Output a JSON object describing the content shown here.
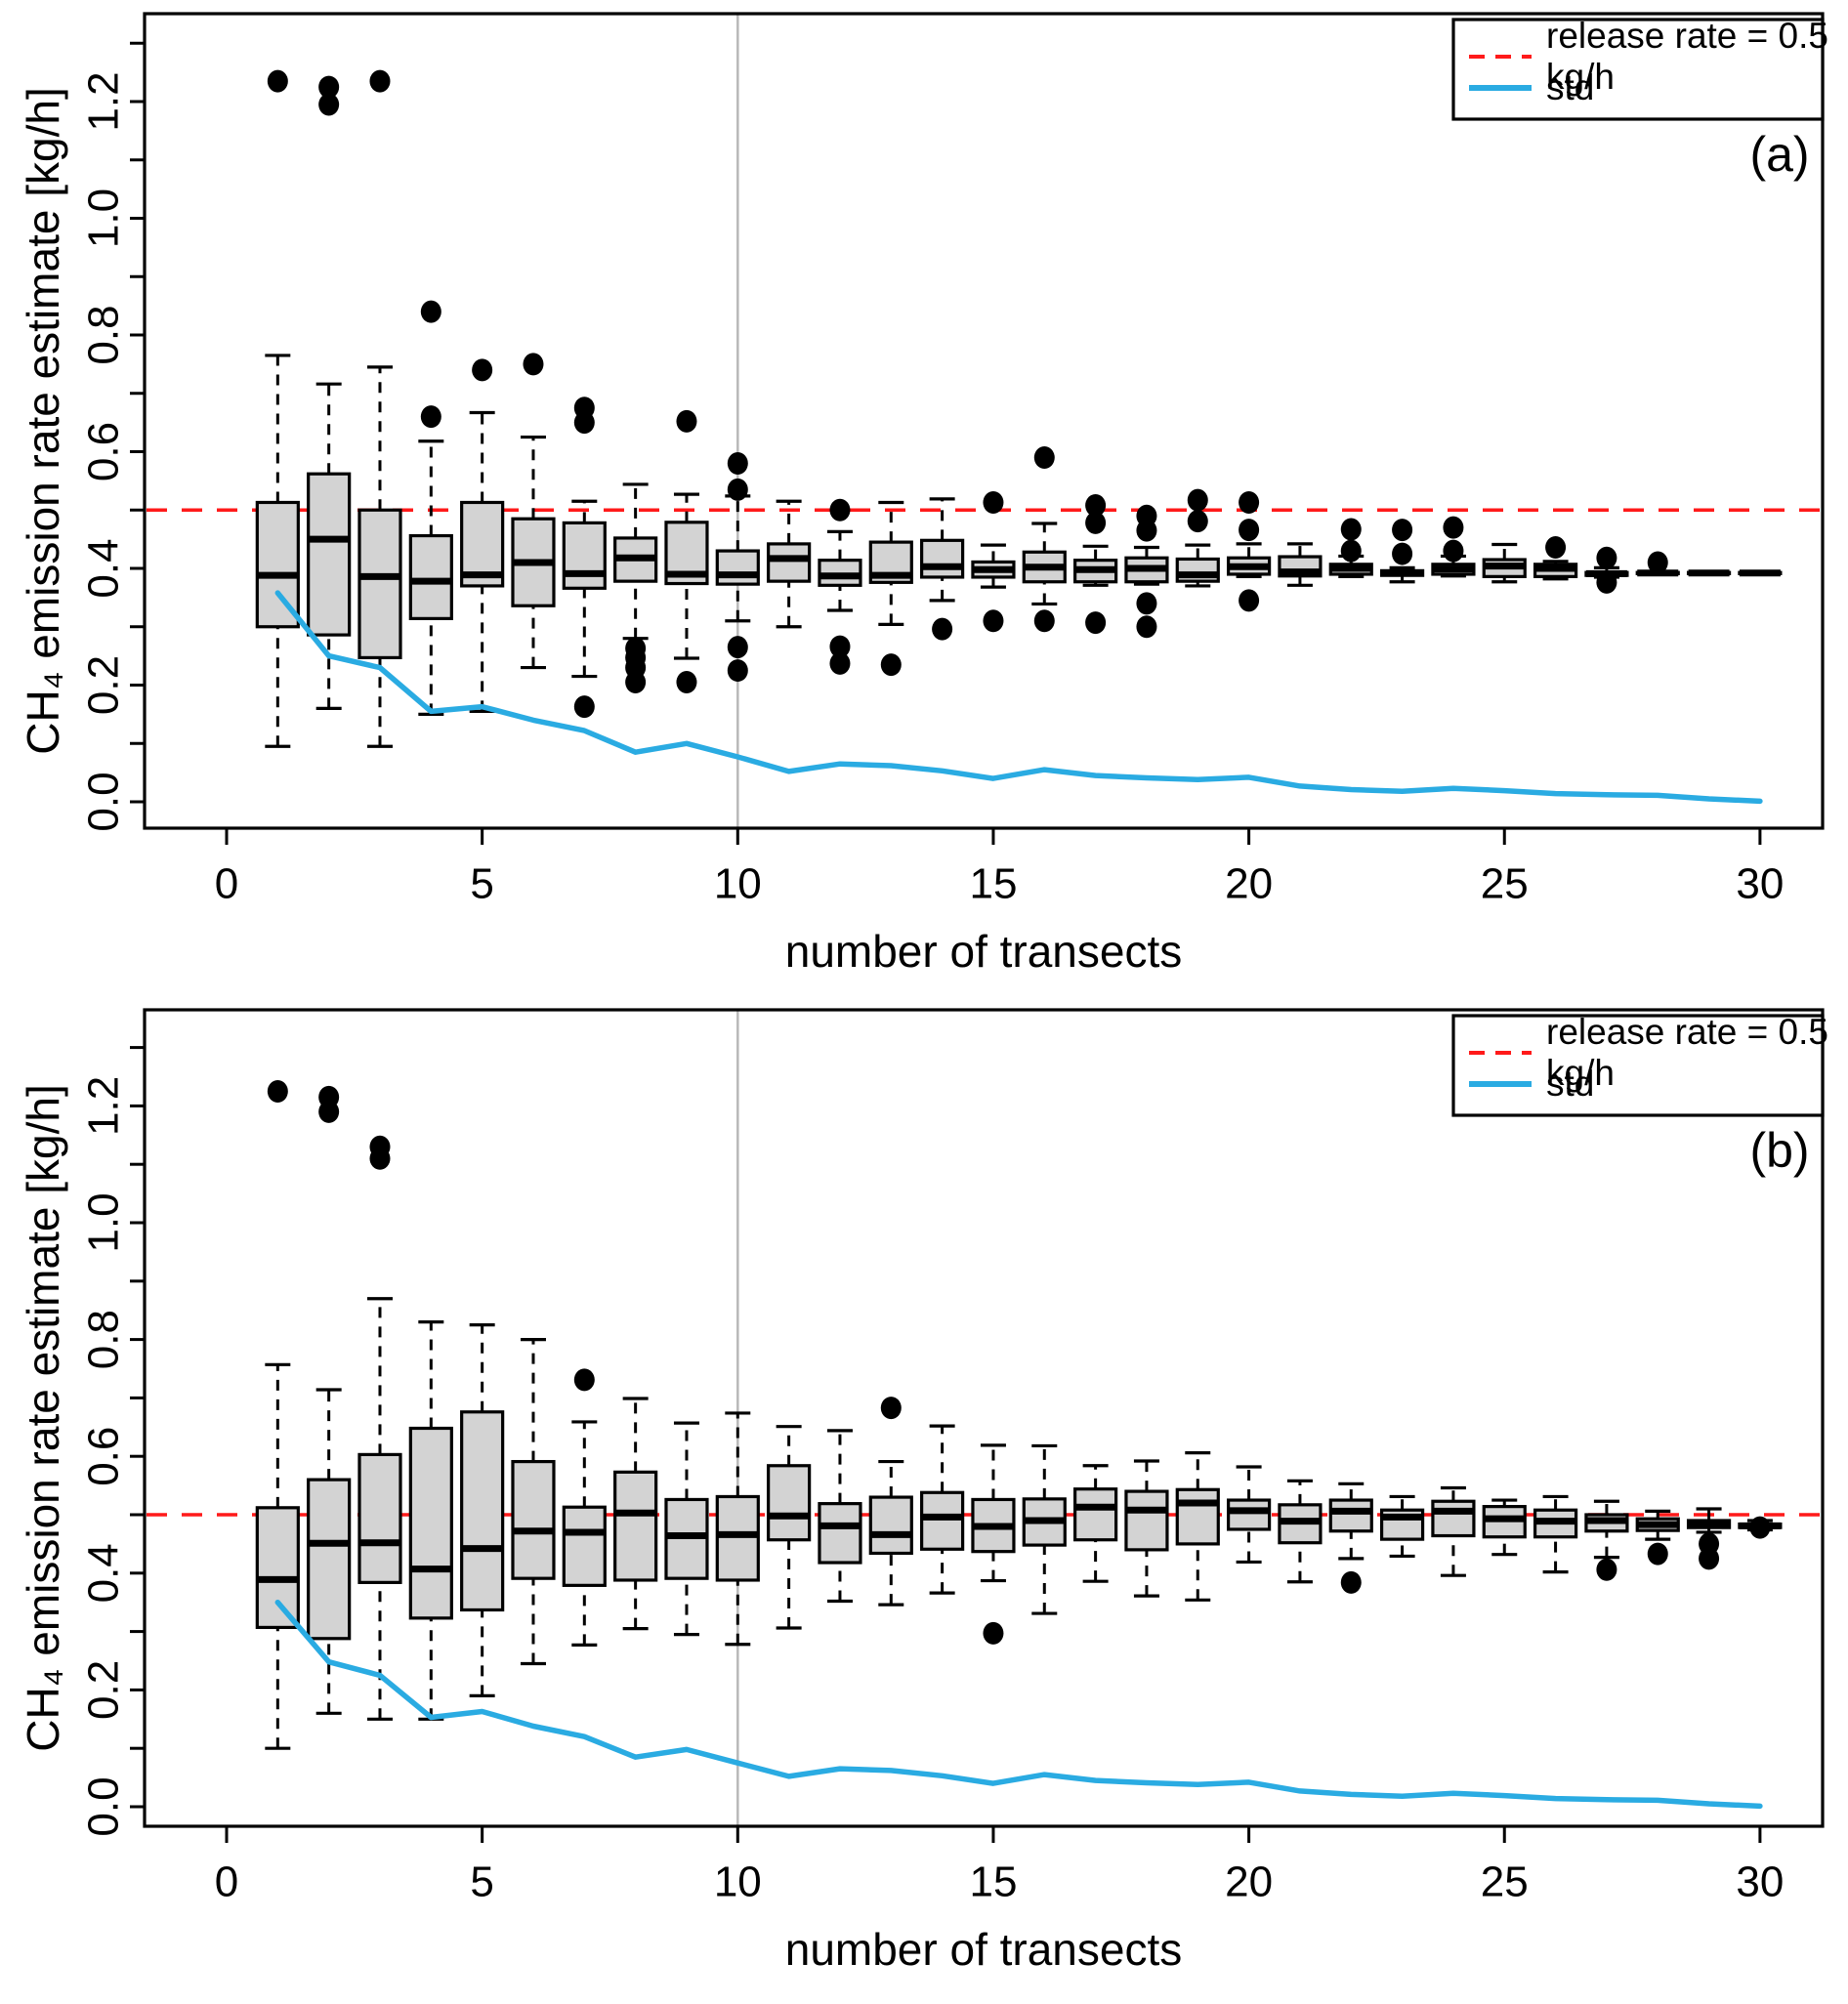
{
  "page": {
    "background": "#ffffff"
  },
  "colors": {
    "release_rate_line": "#ff1a1a",
    "std_line": "#2aabe2",
    "box_fill": "#d3d3d3",
    "box_stroke": "#000000",
    "guide_line": "#b8b8b8",
    "axis": "#000000"
  },
  "legend": {
    "items": [
      {
        "label": "release rate = 0.5 kg/h",
        "style": "dashed",
        "color": "#ff1a1a"
      },
      {
        "label": "std",
        "style": "solid",
        "color": "#2aabe2"
      }
    ]
  },
  "panels": [
    {
      "letter": "(a)",
      "ylabel": "CH₄ emission rate estimate [kg/h]",
      "xlabel": "number of transects"
    },
    {
      "letter": "(b)",
      "ylabel": "CH₄ emission rate estimate [kg/h]",
      "xlabel": "number of transects"
    }
  ],
  "axes": {
    "x_ticks": {
      "values": [
        0,
        5,
        10,
        15,
        20,
        25,
        30
      ],
      "labels": [
        "0",
        "5",
        "10",
        "15",
        "20",
        "25",
        "30"
      ]
    },
    "y_ticks": {
      "major": [
        0.0,
        0.2,
        0.4,
        0.6,
        0.8,
        1.0,
        1.2
      ],
      "major_labels": [
        "0.0",
        "0.2",
        "0.4",
        "0.6",
        "0.8",
        "1.0",
        "1.2"
      ],
      "minor": [
        0.1,
        0.3,
        0.5,
        0.7,
        0.9,
        1.1,
        1.3
      ]
    },
    "xlim": [
      -0.6,
      31.2
    ],
    "ylim": [
      -0.04,
      1.32
    ]
  },
  "chart_data": [
    {
      "type": "boxplot",
      "panel": "a",
      "release_rate": 0.5,
      "guide_vline_x": 10,
      "x": [
        1,
        2,
        3,
        4,
        5,
        6,
        7,
        8,
        9,
        10,
        11,
        12,
        13,
        14,
        15,
        16,
        17,
        18,
        19,
        20,
        21,
        22,
        23,
        24,
        25,
        26,
        27,
        28,
        29,
        30
      ],
      "boxes": [
        {
          "low": 0.095,
          "q1": 0.3,
          "med": 0.388,
          "q3": 0.513,
          "high": 0.765,
          "outliers": [
            1.235
          ]
        },
        {
          "low": 0.16,
          "q1": 0.286,
          "med": 0.45,
          "q3": 0.562,
          "high": 0.716,
          "outliers": [
            1.195,
            1.225
          ]
        },
        {
          "low": 0.095,
          "q1": 0.247,
          "med": 0.386,
          "q3": 0.5,
          "high": 0.745,
          "outliers": [
            1.235
          ]
        },
        {
          "low": 0.15,
          "q1": 0.314,
          "med": 0.378,
          "q3": 0.456,
          "high": 0.618,
          "outliers": [
            0.66,
            0.84
          ]
        },
        {
          "low": 0.155,
          "q1": 0.37,
          "med": 0.389,
          "q3": 0.513,
          "high": 0.667,
          "outliers": [
            0.74
          ]
        },
        {
          "low": 0.23,
          "q1": 0.336,
          "med": 0.41,
          "q3": 0.485,
          "high": 0.625,
          "outliers": [
            0.75
          ]
        },
        {
          "low": 0.215,
          "q1": 0.366,
          "med": 0.391,
          "q3": 0.478,
          "high": 0.515,
          "outliers": [
            0.163,
            0.65,
            0.675
          ]
        },
        {
          "low": 0.28,
          "q1": 0.378,
          "med": 0.418,
          "q3": 0.452,
          "high": 0.544,
          "outliers": [
            0.205,
            0.23,
            0.247,
            0.263
          ]
        },
        {
          "low": 0.246,
          "q1": 0.374,
          "med": 0.39,
          "q3": 0.479,
          "high": 0.527,
          "outliers": [
            0.205,
            0.652
          ]
        },
        {
          "low": 0.31,
          "q1": 0.373,
          "med": 0.389,
          "q3": 0.43,
          "high": 0.524,
          "outliers": [
            0.225,
            0.265,
            0.535,
            0.58
          ]
        },
        {
          "low": 0.3,
          "q1": 0.378,
          "med": 0.417,
          "q3": 0.442,
          "high": 0.515,
          "outliers": []
        },
        {
          "low": 0.328,
          "q1": 0.371,
          "med": 0.387,
          "q3": 0.414,
          "high": 0.463,
          "outliers": [
            0.237,
            0.266,
            0.5
          ]
        },
        {
          "low": 0.304,
          "q1": 0.376,
          "med": 0.388,
          "q3": 0.445,
          "high": 0.513,
          "outliers": [
            0.235
          ]
        },
        {
          "low": 0.345,
          "q1": 0.385,
          "med": 0.403,
          "q3": 0.448,
          "high": 0.519,
          "outliers": [
            0.296
          ]
        },
        {
          "low": 0.368,
          "q1": 0.385,
          "med": 0.398,
          "q3": 0.411,
          "high": 0.44,
          "outliers": [
            0.31,
            0.513
          ]
        },
        {
          "low": 0.339,
          "q1": 0.377,
          "med": 0.402,
          "q3": 0.428,
          "high": 0.477,
          "outliers": [
            0.31,
            0.59
          ]
        },
        {
          "low": 0.371,
          "q1": 0.377,
          "med": 0.398,
          "q3": 0.414,
          "high": 0.438,
          "outliers": [
            0.307,
            0.478,
            0.508
          ]
        },
        {
          "low": 0.373,
          "q1": 0.377,
          "med": 0.4,
          "q3": 0.418,
          "high": 0.436,
          "outliers": [
            0.3,
            0.34,
            0.465,
            0.49
          ]
        },
        {
          "low": 0.37,
          "q1": 0.378,
          "med": 0.389,
          "q3": 0.416,
          "high": 0.44,
          "outliers": [
            0.481,
            0.517
          ]
        },
        {
          "low": 0.386,
          "q1": 0.39,
          "med": 0.403,
          "q3": 0.418,
          "high": 0.442,
          "outliers": [
            0.345,
            0.466,
            0.513
          ]
        },
        {
          "low": 0.371,
          "q1": 0.387,
          "med": 0.394,
          "q3": 0.42,
          "high": 0.442,
          "outliers": []
        },
        {
          "low": 0.386,
          "q1": 0.39,
          "med": 0.4,
          "q3": 0.407,
          "high": 0.421,
          "outliers": [
            0.43,
            0.467
          ]
        },
        {
          "low": 0.377,
          "q1": 0.388,
          "med": 0.392,
          "q3": 0.396,
          "high": 0.401,
          "outliers": [
            0.425,
            0.466
          ]
        },
        {
          "low": 0.387,
          "q1": 0.39,
          "med": 0.399,
          "q3": 0.407,
          "high": 0.421,
          "outliers": [
            0.43,
            0.47
          ]
        },
        {
          "low": 0.377,
          "q1": 0.386,
          "med": 0.404,
          "q3": 0.415,
          "high": 0.441,
          "outliers": []
        },
        {
          "low": 0.382,
          "q1": 0.386,
          "med": 0.4,
          "q3": 0.407,
          "high": 0.412,
          "outliers": [
            0.436
          ]
        },
        {
          "low": 0.385,
          "q1": 0.388,
          "med": 0.391,
          "q3": 0.393,
          "high": 0.401,
          "outliers": [
            0.376,
            0.418
          ]
        },
        {
          "low": 0.39,
          "q1": 0.391,
          "med": 0.392,
          "q3": 0.393,
          "high": 0.394,
          "outliers": [
            0.41
          ]
        },
        {
          "low": 0.39,
          "q1": 0.391,
          "med": 0.392,
          "q3": 0.393,
          "high": 0.394,
          "outliers": []
        },
        {
          "low": 0.39,
          "q1": 0.391,
          "med": 0.392,
          "q3": 0.393,
          "high": 0.394,
          "outliers": []
        }
      ],
      "std": [
        0.358,
        0.25,
        0.23,
        0.155,
        0.163,
        0.14,
        0.122,
        0.085,
        0.1,
        0.077,
        0.052,
        0.065,
        0.062,
        0.053,
        0.04,
        0.055,
        0.045,
        0.041,
        0.038,
        0.042,
        0.027,
        0.021,
        0.018,
        0.023,
        0.019,
        0.014,
        0.012,
        0.011,
        0.005,
        0.001
      ]
    },
    {
      "type": "boxplot",
      "panel": "b",
      "release_rate": 0.5,
      "guide_vline_x": 10,
      "x": [
        1,
        2,
        3,
        4,
        5,
        6,
        7,
        8,
        9,
        10,
        11,
        12,
        13,
        14,
        15,
        16,
        17,
        18,
        19,
        20,
        21,
        22,
        23,
        24,
        25,
        26,
        27,
        28,
        29,
        30
      ],
      "boxes": [
        {
          "low": 0.1,
          "q1": 0.307,
          "med": 0.389,
          "q3": 0.512,
          "high": 0.757,
          "outliers": [
            1.225
          ]
        },
        {
          "low": 0.16,
          "q1": 0.288,
          "med": 0.451,
          "q3": 0.56,
          "high": 0.714,
          "outliers": [
            1.19,
            1.215
          ]
        },
        {
          "low": 0.15,
          "q1": 0.384,
          "med": 0.452,
          "q3": 0.603,
          "high": 0.87,
          "outliers": [
            1.11,
            1.13
          ]
        },
        {
          "low": 0.15,
          "q1": 0.323,
          "med": 0.407,
          "q3": 0.648,
          "high": 0.83,
          "outliers": []
        },
        {
          "low": 0.19,
          "q1": 0.337,
          "med": 0.442,
          "q3": 0.676,
          "high": 0.825,
          "outliers": []
        },
        {
          "low": 0.245,
          "q1": 0.391,
          "med": 0.472,
          "q3": 0.591,
          "high": 0.8,
          "outliers": []
        },
        {
          "low": 0.277,
          "q1": 0.379,
          "med": 0.47,
          "q3": 0.513,
          "high": 0.659,
          "outliers": [
            0.731
          ]
        },
        {
          "low": 0.305,
          "q1": 0.388,
          "med": 0.503,
          "q3": 0.573,
          "high": 0.699,
          "outliers": []
        },
        {
          "low": 0.295,
          "q1": 0.391,
          "med": 0.464,
          "q3": 0.526,
          "high": 0.657,
          "outliers": []
        },
        {
          "low": 0.278,
          "q1": 0.388,
          "med": 0.466,
          "q3": 0.531,
          "high": 0.674,
          "outliers": []
        },
        {
          "low": 0.306,
          "q1": 0.457,
          "med": 0.498,
          "q3": 0.584,
          "high": 0.651,
          "outliers": []
        },
        {
          "low": 0.352,
          "q1": 0.418,
          "med": 0.481,
          "q3": 0.519,
          "high": 0.644,
          "outliers": []
        },
        {
          "low": 0.346,
          "q1": 0.434,
          "med": 0.466,
          "q3": 0.53,
          "high": 0.591,
          "outliers": [
            0.683
          ]
        },
        {
          "low": 0.366,
          "q1": 0.441,
          "med": 0.496,
          "q3": 0.538,
          "high": 0.652,
          "outliers": []
        },
        {
          "low": 0.387,
          "q1": 0.437,
          "med": 0.48,
          "q3": 0.526,
          "high": 0.619,
          "outliers": [
            0.297
          ]
        },
        {
          "low": 0.331,
          "q1": 0.448,
          "med": 0.49,
          "q3": 0.527,
          "high": 0.618,
          "outliers": []
        },
        {
          "low": 0.386,
          "q1": 0.457,
          "med": 0.513,
          "q3": 0.544,
          "high": 0.584,
          "outliers": []
        },
        {
          "low": 0.361,
          "q1": 0.44,
          "med": 0.508,
          "q3": 0.54,
          "high": 0.592,
          "outliers": []
        },
        {
          "low": 0.354,
          "q1": 0.45,
          "med": 0.52,
          "q3": 0.543,
          "high": 0.606,
          "outliers": []
        },
        {
          "low": 0.419,
          "q1": 0.475,
          "med": 0.507,
          "q3": 0.525,
          "high": 0.582,
          "outliers": []
        },
        {
          "low": 0.385,
          "q1": 0.452,
          "med": 0.489,
          "q3": 0.517,
          "high": 0.558,
          "outliers": []
        },
        {
          "low": 0.425,
          "q1": 0.472,
          "med": 0.506,
          "q3": 0.525,
          "high": 0.553,
          "outliers": [
            0.384
          ]
        },
        {
          "low": 0.429,
          "q1": 0.458,
          "med": 0.496,
          "q3": 0.508,
          "high": 0.531,
          "outliers": []
        },
        {
          "low": 0.396,
          "q1": 0.464,
          "med": 0.506,
          "q3": 0.523,
          "high": 0.546,
          "outliers": []
        },
        {
          "low": 0.432,
          "q1": 0.462,
          "med": 0.493,
          "q3": 0.514,
          "high": 0.525,
          "outliers": []
        },
        {
          "low": 0.402,
          "q1": 0.462,
          "med": 0.489,
          "q3": 0.508,
          "high": 0.531,
          "outliers": []
        },
        {
          "low": 0.427,
          "q1": 0.472,
          "med": 0.49,
          "q3": 0.5,
          "high": 0.523,
          "outliers": [
            0.406
          ]
        },
        {
          "low": 0.458,
          "q1": 0.473,
          "med": 0.483,
          "q3": 0.493,
          "high": 0.506,
          "outliers": [
            0.433
          ]
        },
        {
          "low": 0.47,
          "q1": 0.478,
          "med": 0.484,
          "q3": 0.49,
          "high": 0.51,
          "outliers": [
            0.425,
            0.45
          ]
        },
        {
          "low": 0.474,
          "q1": 0.478,
          "med": 0.481,
          "q3": 0.484,
          "high": 0.49,
          "outliers": [
            0.478
          ]
        }
      ],
      "std": [
        0.35,
        0.248,
        0.225,
        0.153,
        0.163,
        0.138,
        0.12,
        0.085,
        0.098,
        0.075,
        0.052,
        0.065,
        0.062,
        0.053,
        0.04,
        0.055,
        0.045,
        0.041,
        0.038,
        0.042,
        0.027,
        0.021,
        0.018,
        0.023,
        0.019,
        0.014,
        0.012,
        0.011,
        0.005,
        0.001
      ]
    }
  ]
}
